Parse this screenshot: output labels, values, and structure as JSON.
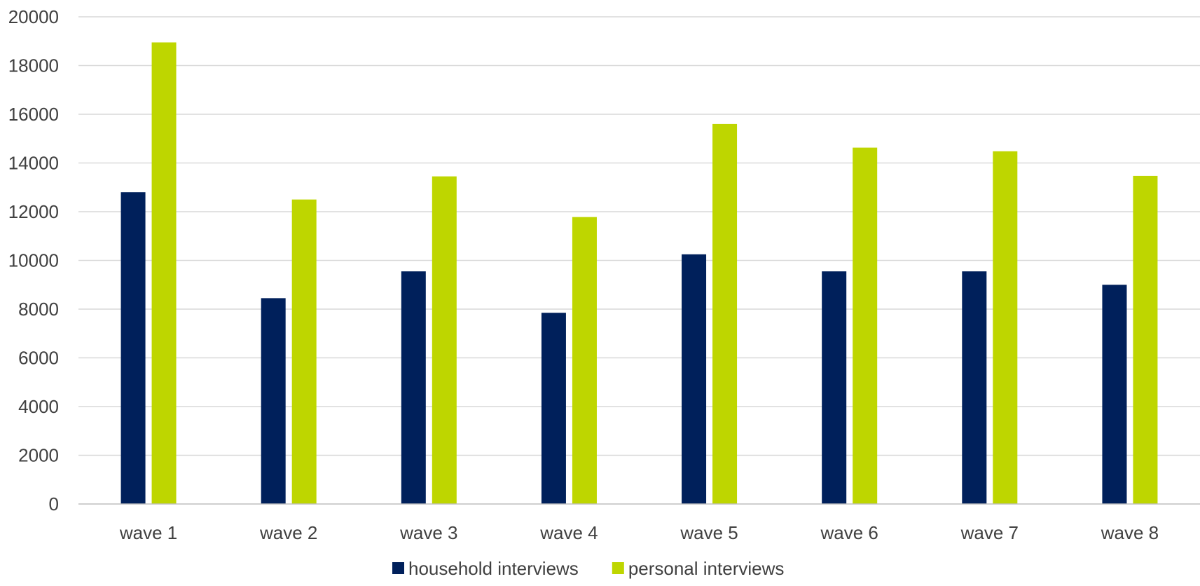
{
  "chart_data": {
    "type": "bar",
    "title": "",
    "xlabel": "",
    "ylabel": "",
    "categories": [
      "wave 1",
      "wave 2",
      "wave 3",
      "wave 4",
      "wave 5",
      "wave 6",
      "wave 7",
      "wave 8"
    ],
    "series": [
      {
        "name": "household interviews",
        "color": "#00205b",
        "values": [
          12800,
          8450,
          9550,
          7850,
          10250,
          9550,
          9550,
          9000
        ]
      },
      {
        "name": "personal interviews",
        "color": "#bed600",
        "values": [
          18950,
          12500,
          13450,
          11780,
          15600,
          14630,
          14480,
          13470
        ]
      }
    ],
    "ylim": [
      0,
      20000
    ],
    "yticks": [
      0,
      2000,
      4000,
      6000,
      8000,
      10000,
      12000,
      14000,
      16000,
      18000,
      20000
    ],
    "grid": true,
    "legend_position": "bottom"
  }
}
